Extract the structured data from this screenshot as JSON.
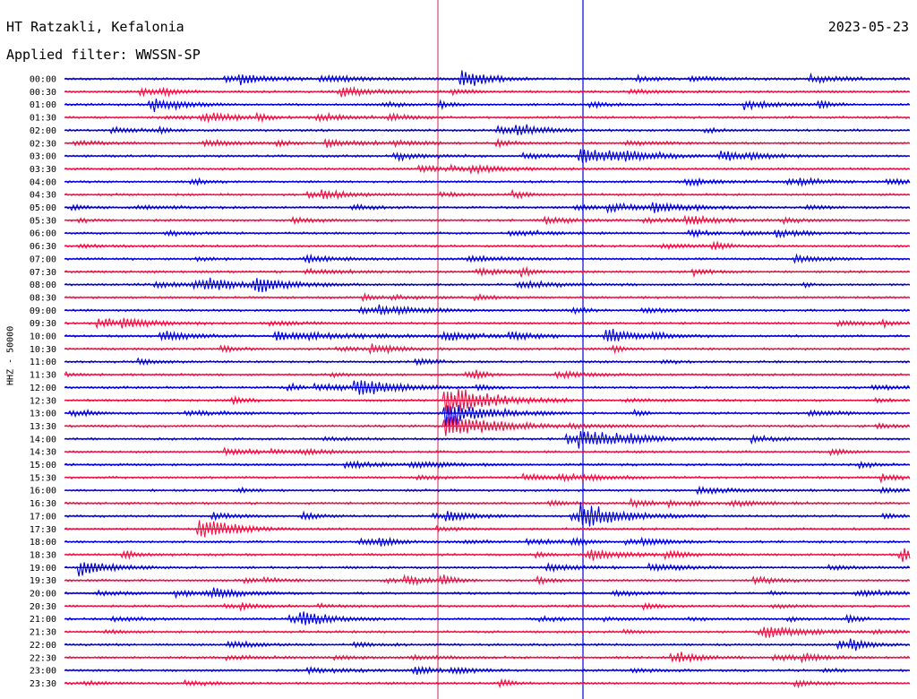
{
  "header": {
    "station": "HT Ratzakli, Kefalonia",
    "date": "2023-05-23",
    "filter_label": "Applied filter: WWSSN-SP"
  },
  "chart_data": {
    "type": "helicorder",
    "ylabel": "HHZ - 50000",
    "row_labels": [
      "00:00",
      "00:30",
      "01:00",
      "01:30",
      "02:00",
      "02:30",
      "03:00",
      "03:30",
      "04:00",
      "04:30",
      "05:00",
      "05:30",
      "06:00",
      "06:30",
      "07:00",
      "07:30",
      "08:00",
      "08:30",
      "09:00",
      "09:30",
      "10:00",
      "10:30",
      "11:00",
      "11:30",
      "12:00",
      "12:30",
      "13:00",
      "13:30",
      "14:00",
      "14:30",
      "15:00",
      "15:30",
      "16:00",
      "16:30",
      "17:00",
      "17:30",
      "18:00",
      "18:30",
      "19:00",
      "19:30",
      "20:00",
      "20:30",
      "21:00",
      "21:30",
      "22:00",
      "22:30",
      "23:00",
      "23:30"
    ],
    "trace_colors": [
      "#0000dd",
      "#ee1144"
    ],
    "marker_color_1": "#cc2255",
    "marker_color_2": "#0000dd",
    "events": [
      {
        "row": 0,
        "x": 0.47,
        "amp": 1.8,
        "dur": 0.03
      },
      {
        "row": 6,
        "x": 0.61,
        "amp": 1.4,
        "dur": 0.07
      },
      {
        "row": 20,
        "x": 0.25,
        "amp": 0.9,
        "dur": 0.08
      },
      {
        "row": 25,
        "x": 0.45,
        "amp": 3.0,
        "dur": 0.05
      },
      {
        "row": 26,
        "x": 0.45,
        "amp": 2.5,
        "dur": 0.05
      },
      {
        "row": 27,
        "x": 0.45,
        "amp": 2.2,
        "dur": 0.05
      },
      {
        "row": 28,
        "x": 0.61,
        "amp": 1.4,
        "dur": 0.06
      },
      {
        "row": 34,
        "x": 0.61,
        "amp": 2.0,
        "dur": 0.05
      },
      {
        "row": 35,
        "x": 0.16,
        "amp": 1.4,
        "dur": 0.04
      },
      {
        "row": 38,
        "x": 0.02,
        "amp": 1.0,
        "dur": 0.04
      },
      {
        "row": 42,
        "x": 0.28,
        "amp": 0.9,
        "dur": 0.04
      }
    ]
  }
}
